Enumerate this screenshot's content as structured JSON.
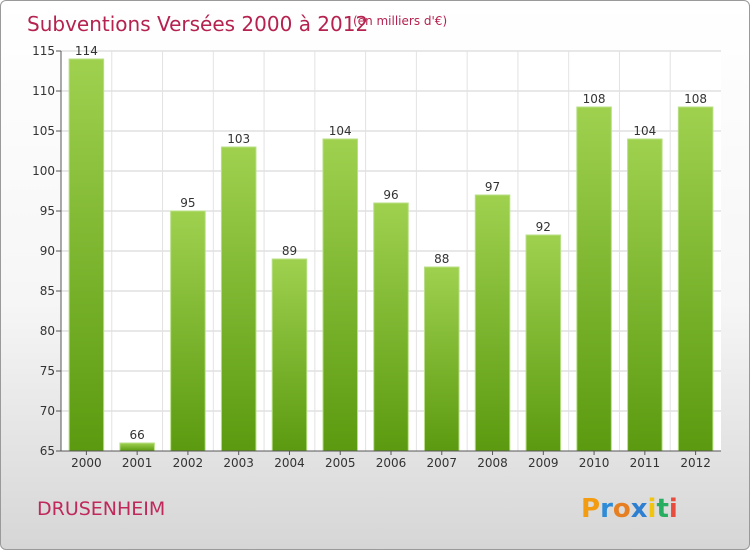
{
  "chart_data": {
    "type": "bar",
    "title": "Subventions Versées 2000 à 2012",
    "subtitle": "(en milliers d'€)",
    "categories": [
      "2000",
      "2001",
      "2002",
      "2003",
      "2004",
      "2005",
      "2006",
      "2007",
      "2008",
      "2009",
      "2010",
      "2011",
      "2012"
    ],
    "values": [
      114,
      66,
      95,
      103,
      89,
      104,
      96,
      88,
      97,
      92,
      108,
      104,
      108
    ],
    "ylim": [
      65,
      115
    ],
    "yticks": [
      65,
      70,
      75,
      80,
      85,
      90,
      95,
      100,
      105,
      110,
      115
    ],
    "grid": true,
    "bar_color": "#7cbf32"
  },
  "footer": {
    "place": "DRUSENHEIM",
    "logo": [
      "P",
      "r",
      "o",
      "x",
      "i",
      "t",
      "i"
    ]
  }
}
